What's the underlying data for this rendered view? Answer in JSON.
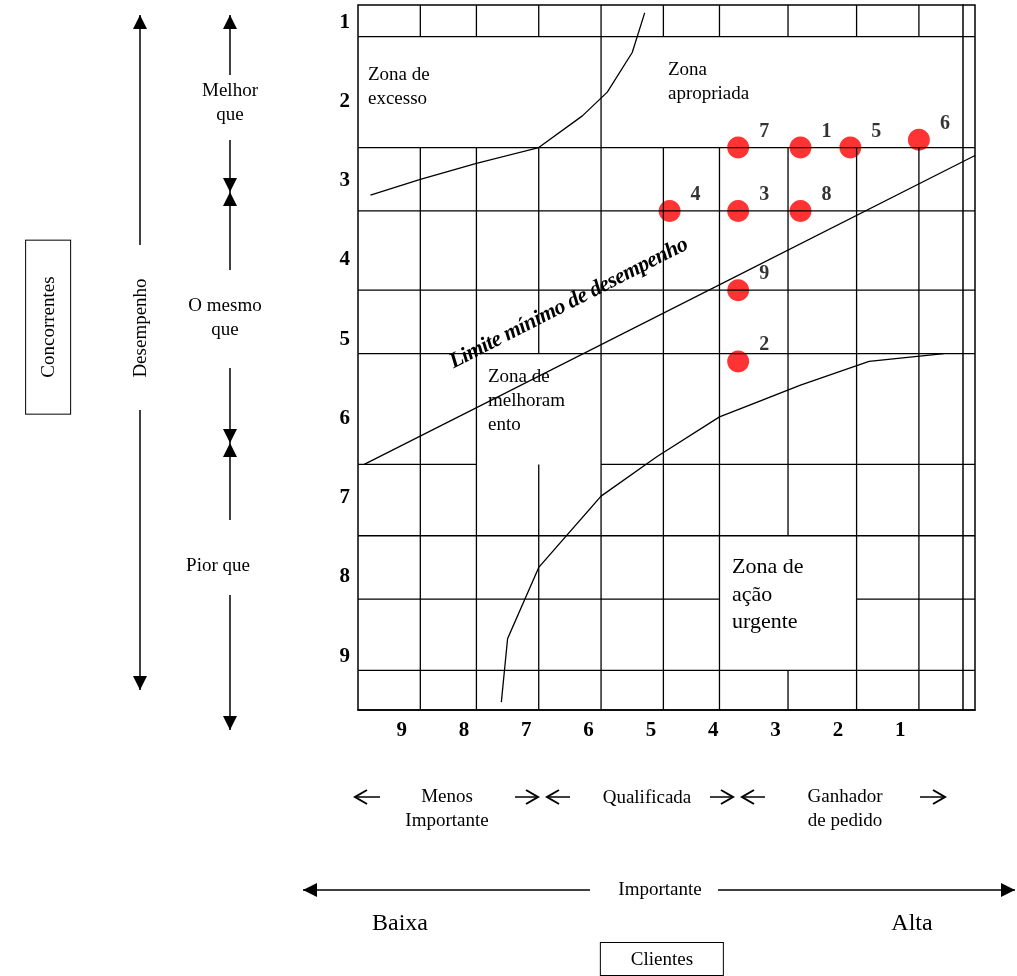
{
  "chart_data": {
    "type": "scatter",
    "xlim": [
      9.7,
      -0.2
    ],
    "ylim": [
      9.7,
      0.8
    ],
    "xticks": [
      9,
      8,
      7,
      6,
      5,
      4,
      3,
      2,
      1
    ],
    "yticks": [
      1,
      2,
      3,
      4,
      5,
      6,
      7,
      8,
      9
    ],
    "series": [
      {
        "name": "7",
        "color": "#ff0000",
        "x": [
          3.6
        ],
        "values": [
          2.6
        ]
      },
      {
        "name": "1",
        "color": "#ff0000",
        "x": [
          2.6
        ],
        "values": [
          2.6
        ]
      },
      {
        "name": "5",
        "color": "#ff0000",
        "x": [
          1.8
        ],
        "values": [
          2.6
        ]
      },
      {
        "name": "6",
        "color": "#ff0000",
        "x": [
          0.7
        ],
        "values": [
          2.5
        ]
      },
      {
        "name": "4",
        "color": "#ff0000",
        "x": [
          4.7
        ],
        "values": [
          3.4
        ]
      },
      {
        "name": "3",
        "color": "#ff0000",
        "x": [
          3.6
        ],
        "values": [
          3.4
        ]
      },
      {
        "name": "8",
        "color": "#ff0000",
        "x": [
          2.6
        ],
        "values": [
          3.4
        ]
      },
      {
        "name": "9",
        "color": "#ff0000",
        "x": [
          3.6
        ],
        "values": [
          4.4
        ]
      },
      {
        "name": "2",
        "color": "#ff0000",
        "x": [
          3.6
        ],
        "values": [
          5.3
        ]
      },
      {
        "type": "line",
        "color": "#000000",
        "x": [
          9.6,
          -0.2
        ],
        "values": [
          6.6,
          2.7
        ]
      },
      {
        "type": "line",
        "color": "#000000",
        "x": [
          8.7,
          8.7
        ],
        "values": [
          0.8,
          1.2
        ]
      },
      {
        "type": "line",
        "color": "#000000",
        "x": [
          8.7,
          8.7
        ],
        "values": [
          2.6,
          9.7
        ]
      },
      {
        "type": "line",
        "color": "#000000",
        "x": [
          7.8,
          7.8
        ],
        "values": [
          0.8,
          1.2
        ]
      },
      {
        "type": "line",
        "color": "#000000",
        "x": [
          7.8,
          7.8
        ],
        "values": [
          2.6,
          9.7
        ]
      },
      {
        "type": "line",
        "color": "#000000",
        "x": [
          6.8,
          6.8
        ],
        "values": [
          0.8,
          1.2
        ]
      },
      {
        "type": "line",
        "color": "#000000",
        "x": [
          6.8,
          6.8
        ],
        "values": [
          2.6,
          5.2
        ]
      },
      {
        "type": "line",
        "color": "#000000",
        "x": [
          6.8,
          6.8
        ],
        "values": [
          6.6,
          9.7
        ]
      },
      {
        "type": "line",
        "color": "#000000",
        "x": [
          5.8,
          5.8
        ],
        "values": [
          0.8,
          9.7
        ]
      },
      {
        "type": "line",
        "color": "#000000",
        "x": [
          4.8,
          4.8
        ],
        "values": [
          0.8,
          1.2
        ]
      },
      {
        "type": "line",
        "color": "#000000",
        "x": [
          4.8,
          4.8
        ],
        "values": [
          2.6,
          9.7
        ]
      },
      {
        "type": "line",
        "color": "#000000",
        "x": [
          3.9,
          3.9
        ],
        "values": [
          0.8,
          1.2
        ]
      },
      {
        "type": "line",
        "color": "#000000",
        "x": [
          3.9,
          3.9
        ],
        "values": [
          2.6,
          9.7
        ]
      },
      {
        "type": "line",
        "color": "#000000",
        "x": [
          2.8,
          2.8
        ],
        "values": [
          0.8,
          1.2
        ]
      },
      {
        "type": "line",
        "color": "#000000",
        "x": [
          2.8,
          2.8
        ],
        "values": [
          2.6,
          7.5
        ]
      },
      {
        "type": "line",
        "color": "#000000",
        "x": [
          2.8,
          2.8
        ],
        "values": [
          9.2,
          9.7
        ]
      },
      {
        "type": "line",
        "color": "#000000",
        "x": [
          1.7,
          1.7
        ],
        "values": [
          0.8,
          1.2
        ]
      },
      {
        "type": "line",
        "color": "#000000",
        "x": [
          1.7,
          1.7
        ],
        "values": [
          2.6,
          9.7
        ]
      },
      {
        "type": "line",
        "color": "#000000",
        "x": [
          0.7,
          0.7
        ],
        "values": [
          0.8,
          1.2
        ]
      },
      {
        "type": "line",
        "color": "#000000",
        "x": [
          0.7,
          0.7
        ],
        "values": [
          2.6,
          9.7
        ]
      },
      {
        "type": "line",
        "color": "#000000",
        "x": [
          9.7,
          -0.2
        ],
        "values": [
          1.2,
          1.2
        ]
      },
      {
        "type": "line",
        "color": "#000000",
        "x": [
          9.7,
          -0.2
        ],
        "values": [
          2.6,
          2.6
        ]
      },
      {
        "type": "line",
        "color": "#000000",
        "x": [
          9.7,
          -0.2
        ],
        "values": [
          3.4,
          3.4
        ]
      },
      {
        "type": "line",
        "color": "#000000",
        "x": [
          9.7,
          -0.2
        ],
        "values": [
          4.4,
          4.4
        ]
      },
      {
        "type": "line",
        "color": "#000000",
        "x": [
          9.7,
          -0.2
        ],
        "values": [
          5.2,
          5.2
        ]
      },
      {
        "type": "line",
        "color": "#000000",
        "x": [
          9.7,
          7.8
        ],
        "values": [
          6.6,
          6.6
        ]
      },
      {
        "type": "line",
        "color": "#000000",
        "x": [
          5.8,
          -0.2
        ],
        "values": [
          6.6,
          6.6
        ]
      },
      {
        "type": "line",
        "color": "#000000",
        "x": [
          9.7,
          -0.2
        ],
        "values": [
          7.5,
          7.5
        ]
      },
      {
        "type": "line",
        "color": "#000000",
        "x": [
          9.7,
          3.9
        ],
        "values": [
          8.3,
          8.3
        ]
      },
      {
        "type": "line",
        "color": "#000000",
        "x": [
          1.7,
          -0.2
        ],
        "values": [
          8.3,
          8.3
        ]
      },
      {
        "type": "line",
        "color": "#000000",
        "x": [
          9.7,
          -0.2
        ],
        "values": [
          9.2,
          9.2
        ]
      },
      {
        "type": "line",
        "color": "#000000",
        "x": [
          9.5,
          8.7,
          7.8,
          6.8,
          6.1,
          5.7,
          5.3,
          5.1
        ],
        "values": [
          3.2,
          3.0,
          2.8,
          2.6,
          2.2,
          1.9,
          1.4,
          0.9
        ]
      },
      {
        "type": "line",
        "color": "#000000",
        "x": [
          7.4,
          7.3,
          6.8,
          5.8,
          4.9,
          3.9,
          2.6,
          1.5,
          0.3
        ],
        "values": [
          9.6,
          8.8,
          7.9,
          7.0,
          6.5,
          6.0,
          5.6,
          5.3,
          5.2
        ]
      }
    ],
    "annotations": [
      "Zona de\nexcesso",
      "Zona\napropriada",
      "Zona de\nmelhoram\nento",
      "Zona de\nação\nurgente",
      "Limite mínimo de desempenho",
      "Melhor\nque",
      "O mesmo\nque",
      "Pior que",
      "Desempenho",
      "Concorrentes",
      "Menos\nImportante",
      "Qualificada",
      "Ganhador\nde pedido",
      "Importante",
      "Baixa",
      "Alta",
      "Clientes"
    ]
  }
}
